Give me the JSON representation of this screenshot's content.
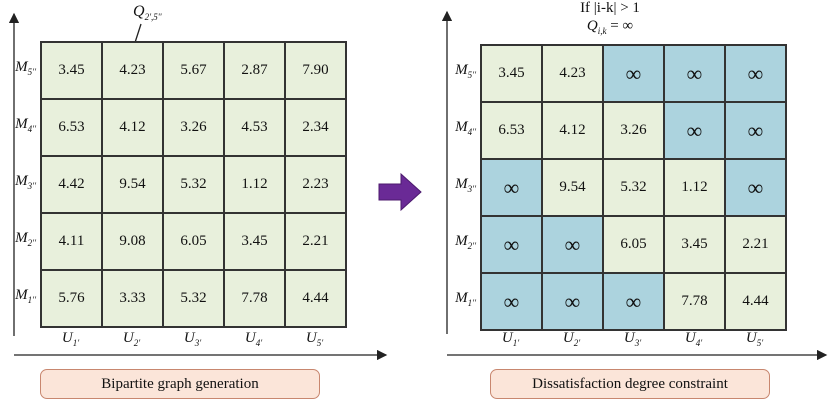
{
  "left_panel": {
    "callout": "Q",
    "callout_sub": "2',5''",
    "rows": [
      {
        "label": "M",
        "sub": "5''",
        "cells": [
          "3.45",
          "4.23",
          "5.67",
          "2.87",
          "7.90"
        ]
      },
      {
        "label": "M",
        "sub": "4''",
        "cells": [
          "6.53",
          "4.12",
          "3.26",
          "4.53",
          "2.34"
        ]
      },
      {
        "label": "M",
        "sub": "3''",
        "cells": [
          "4.42",
          "9.54",
          "5.32",
          "1.12",
          "2.23"
        ]
      },
      {
        "label": "M",
        "sub": "2''",
        "cells": [
          "4.11",
          "9.08",
          "6.05",
          "3.45",
          "2.21"
        ]
      },
      {
        "label": "M",
        "sub": "1''",
        "cells": [
          "5.76",
          "3.33",
          "5.32",
          "7.78",
          "4.44"
        ]
      }
    ],
    "columns": [
      {
        "label": "U",
        "sub": "1'"
      },
      {
        "label": "U",
        "sub": "2'"
      },
      {
        "label": "U",
        "sub": "3'"
      },
      {
        "label": "U",
        "sub": "4'"
      },
      {
        "label": "U",
        "sub": "5'"
      }
    ],
    "caption": "Bipartite graph generation"
  },
  "right_panel": {
    "constraint_line1": "If |i-k| > 1",
    "constraint_line2_q": "Q",
    "constraint_line2_sub": "i,k",
    "constraint_line2_rest": " = ∞",
    "rows": [
      {
        "label": "M",
        "sub": "5''",
        "cells": [
          "3.45",
          "4.23",
          "∞",
          "∞",
          "∞"
        ]
      },
      {
        "label": "M",
        "sub": "4''",
        "cells": [
          "6.53",
          "4.12",
          "3.26",
          "∞",
          "∞"
        ]
      },
      {
        "label": "M",
        "sub": "3''",
        "cells": [
          "∞",
          "9.54",
          "5.32",
          "1.12",
          "∞"
        ]
      },
      {
        "label": "M",
        "sub": "2''",
        "cells": [
          "∞",
          "∞",
          "6.05",
          "3.45",
          "2.21"
        ]
      },
      {
        "label": "M",
        "sub": "1''",
        "cells": [
          "∞",
          "∞",
          "∞",
          "7.78",
          "4.44"
        ]
      }
    ],
    "columns": [
      {
        "label": "U",
        "sub": "1'"
      },
      {
        "label": "U",
        "sub": "2'"
      },
      {
        "label": "U",
        "sub": "3'"
      },
      {
        "label": "U",
        "sub": "4'"
      },
      {
        "label": "U",
        "sub": "5'"
      }
    ],
    "caption": "Dissatisfaction degree constraint"
  },
  "colors": {
    "finite_cell": "#e8f0dc",
    "infinite_cell": "#acd3de",
    "caption_fill": "#fbe5d9",
    "caption_border": "#c8876f",
    "arrow": "#6a2a96"
  },
  "icons": {
    "transition": "right-arrow-icon"
  }
}
